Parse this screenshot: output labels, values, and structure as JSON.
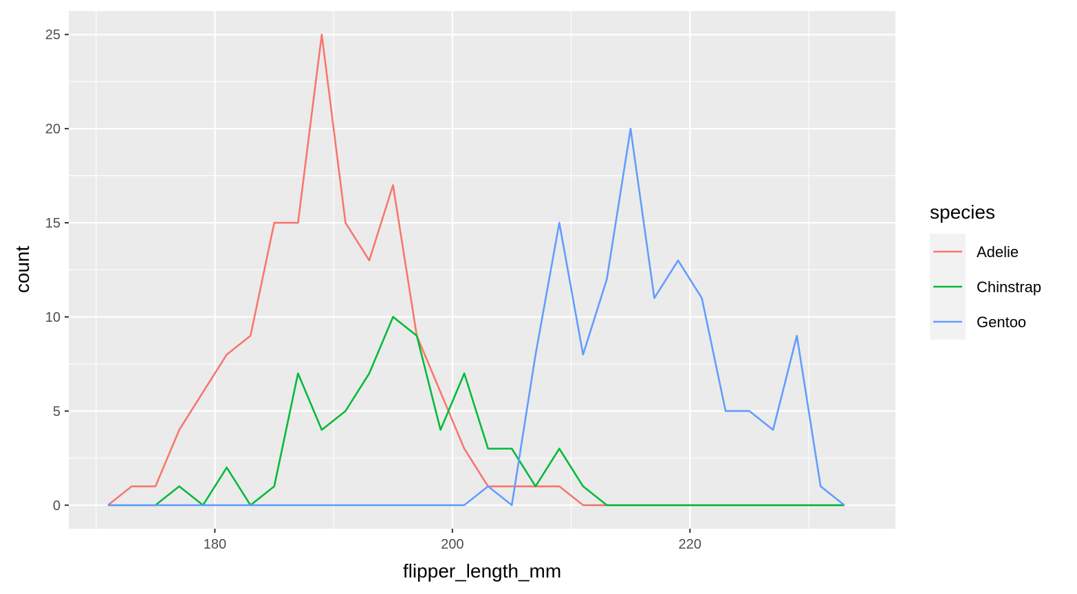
{
  "chart_data": {
    "type": "line",
    "xlabel": "flipper_length_mm",
    "ylabel": "count",
    "xlim": [
      167.7,
      237.3
    ],
    "ylim": [
      -1.25,
      26.25
    ],
    "x_ticks": [
      180,
      200,
      220
    ],
    "x_minor_ticks": [
      170,
      190,
      210,
      230
    ],
    "y_ticks": [
      0,
      5,
      10,
      15,
      20,
      25
    ],
    "y_minor_ticks": [
      2.5,
      7.5,
      12.5,
      17.5,
      22.5
    ],
    "grid": true,
    "legend": {
      "title": "species",
      "position": "right"
    },
    "x": [
      171.0,
      173.0,
      175.0,
      177.0,
      179.0,
      181.0,
      183.0,
      185.0,
      187.0,
      189.0,
      191.0,
      193.0,
      195.0,
      197.0,
      199.0,
      201.0,
      203.0,
      205.0,
      207.0,
      209.0,
      211.0,
      213.0,
      215.0,
      217.0,
      219.0,
      221.0,
      223.0,
      225.0,
      227.0,
      229.0,
      231.0,
      233.0
    ],
    "series": [
      {
        "name": "Adelie",
        "color": "#F8766D",
        "values": [
          0,
          1,
          1,
          4,
          6,
          8,
          9,
          15,
          15,
          25,
          15,
          13,
          17,
          9,
          6,
          3,
          1,
          1,
          1,
          1,
          0,
          0,
          0,
          0,
          0,
          0,
          0,
          0,
          0,
          0,
          0,
          0
        ]
      },
      {
        "name": "Chinstrap",
        "color": "#00BA38",
        "values": [
          0,
          0,
          0,
          1,
          0,
          2,
          0,
          1,
          7,
          4,
          5,
          7,
          10,
          9,
          4,
          7,
          3,
          3,
          1,
          3,
          1,
          0,
          0,
          0,
          0,
          0,
          0,
          0,
          0,
          0,
          0,
          0
        ]
      },
      {
        "name": "Gentoo",
        "color": "#619CFF",
        "values": [
          0,
          0,
          0,
          0,
          0,
          0,
          0,
          0,
          0,
          0,
          0,
          0,
          0,
          0,
          0,
          0,
          1,
          0,
          8,
          15,
          8,
          12,
          20,
          11,
          13,
          11,
          5,
          5,
          4,
          9,
          1,
          0
        ]
      }
    ]
  }
}
